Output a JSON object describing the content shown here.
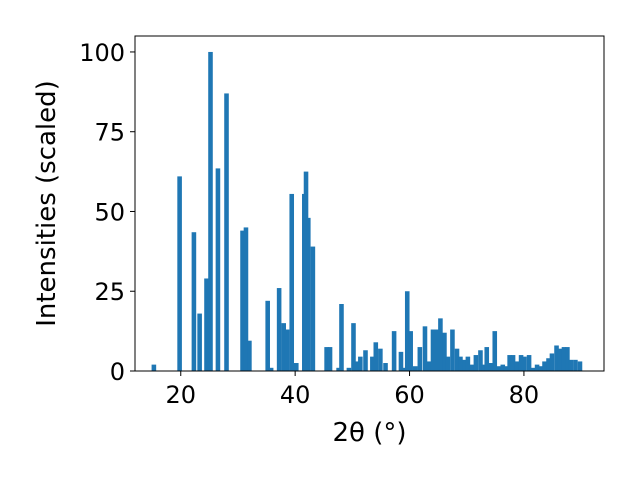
{
  "chart_data": {
    "type": "bar",
    "xlabel": "2θ (°)",
    "ylabel": "Intensities (scaled)",
    "xlim": [
      12,
      94
    ],
    "ylim": [
      0,
      105
    ],
    "xticks": [
      20,
      40,
      60,
      80
    ],
    "yticks": [
      0,
      25,
      50,
      75,
      100
    ],
    "grid": false,
    "bar_color": "#1f77b4",
    "bar_width": 0.8,
    "x": [
      15.3,
      19.8,
      22.3,
      23.3,
      24.5,
      25.2,
      26.5,
      28.0,
      30.8,
      31.4,
      32.0,
      35.2,
      35.8,
      37.2,
      38.0,
      38.6,
      39.4,
      40.2,
      41.6,
      41.9,
      42.3,
      43.1,
      45.5,
      46.1,
      47.6,
      48.1,
      49.4,
      50.2,
      50.8,
      51.4,
      52.3,
      53.5,
      54.1,
      54.9,
      55.8,
      57.3,
      58.5,
      59.0,
      59.6,
      60.2,
      61.0,
      61.8,
      62.7,
      63.4,
      64.1,
      64.7,
      65.4,
      66.1,
      66.7,
      67.5,
      68.3,
      68.9,
      69.6,
      70.2,
      70.9,
      71.6,
      72.4,
      73.0,
      73.5,
      74.2,
      74.9,
      75.6,
      76.3,
      76.9,
      77.5,
      78.1,
      78.8,
      79.5,
      80.1,
      80.9,
      81.6,
      82.3,
      83.0,
      83.6,
      84.3,
      84.9,
      85.7,
      86.3,
      87.0,
      87.6,
      88.2,
      89.0,
      89.8
    ],
    "values": [
      2,
      61,
      43.5,
      18,
      29,
      100,
      63.5,
      87,
      44,
      45,
      9.5,
      22,
      1,
      26,
      15,
      13,
      55.5,
      2.5,
      55.5,
      62.5,
      48,
      39,
      7.5,
      7.5,
      1,
      21,
      1,
      15,
      3,
      4.5,
      6.5,
      4.5,
      9,
      7,
      2.5,
      12.5,
      6,
      1,
      25,
      12.5,
      1.5,
      7.5,
      14,
      3,
      13,
      13,
      16.5,
      12,
      4.5,
      13,
      7,
      4.5,
      3.5,
      4.5,
      2,
      5,
      6.5,
      2,
      7.5,
      2.5,
      12.5,
      1.5,
      2,
      1.5,
      5,
      5,
      3,
      5,
      4.5,
      5,
      1,
      2,
      1.5,
      3,
      4,
      5.5,
      8,
      7,
      7.5,
      7.5,
      3.5,
      3.5,
      3
    ]
  }
}
